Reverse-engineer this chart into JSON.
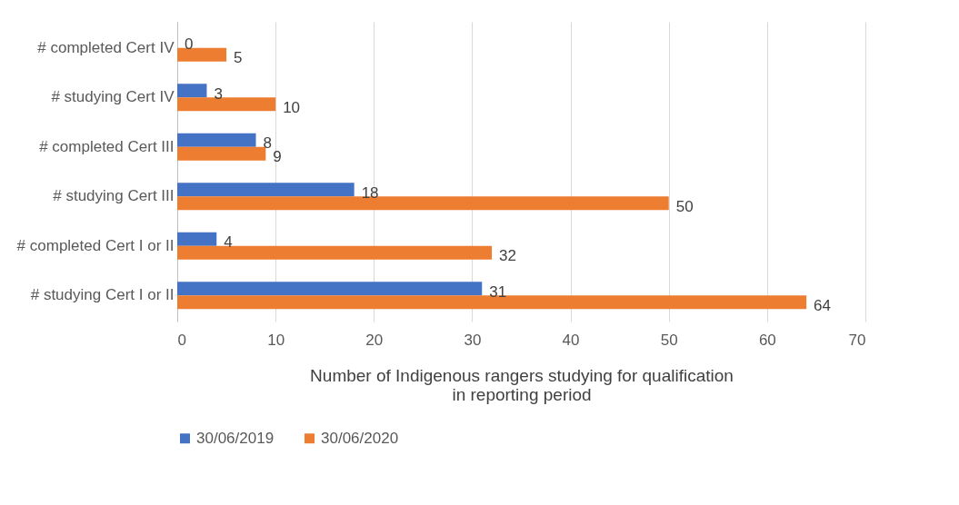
{
  "chart_data": {
    "type": "bar",
    "orientation": "horizontal",
    "xlabel": "Number of Indigenous rangers studying for qualification\n in reporting period",
    "categories": [
      "# completed Cert IV",
      "# studying Cert IV",
      "# completed Cert III",
      "# studying Cert III",
      "# completed Cert I or II",
      "# studying Cert I or II"
    ],
    "series": [
      {
        "name": "30/06/2019",
        "color": "#4472c4",
        "values": [
          0,
          3,
          8,
          18,
          4,
          31
        ]
      },
      {
        "name": "30/06/2020",
        "color": "#ed7d31",
        "values": [
          5,
          10,
          9,
          50,
          32,
          64
        ]
      }
    ],
    "xlim": [
      0,
      70
    ],
    "xticks": [
      0,
      10,
      20,
      30,
      40,
      50,
      60,
      70
    ],
    "grid": "x",
    "legend": "bottom",
    "data_labels": true
  }
}
